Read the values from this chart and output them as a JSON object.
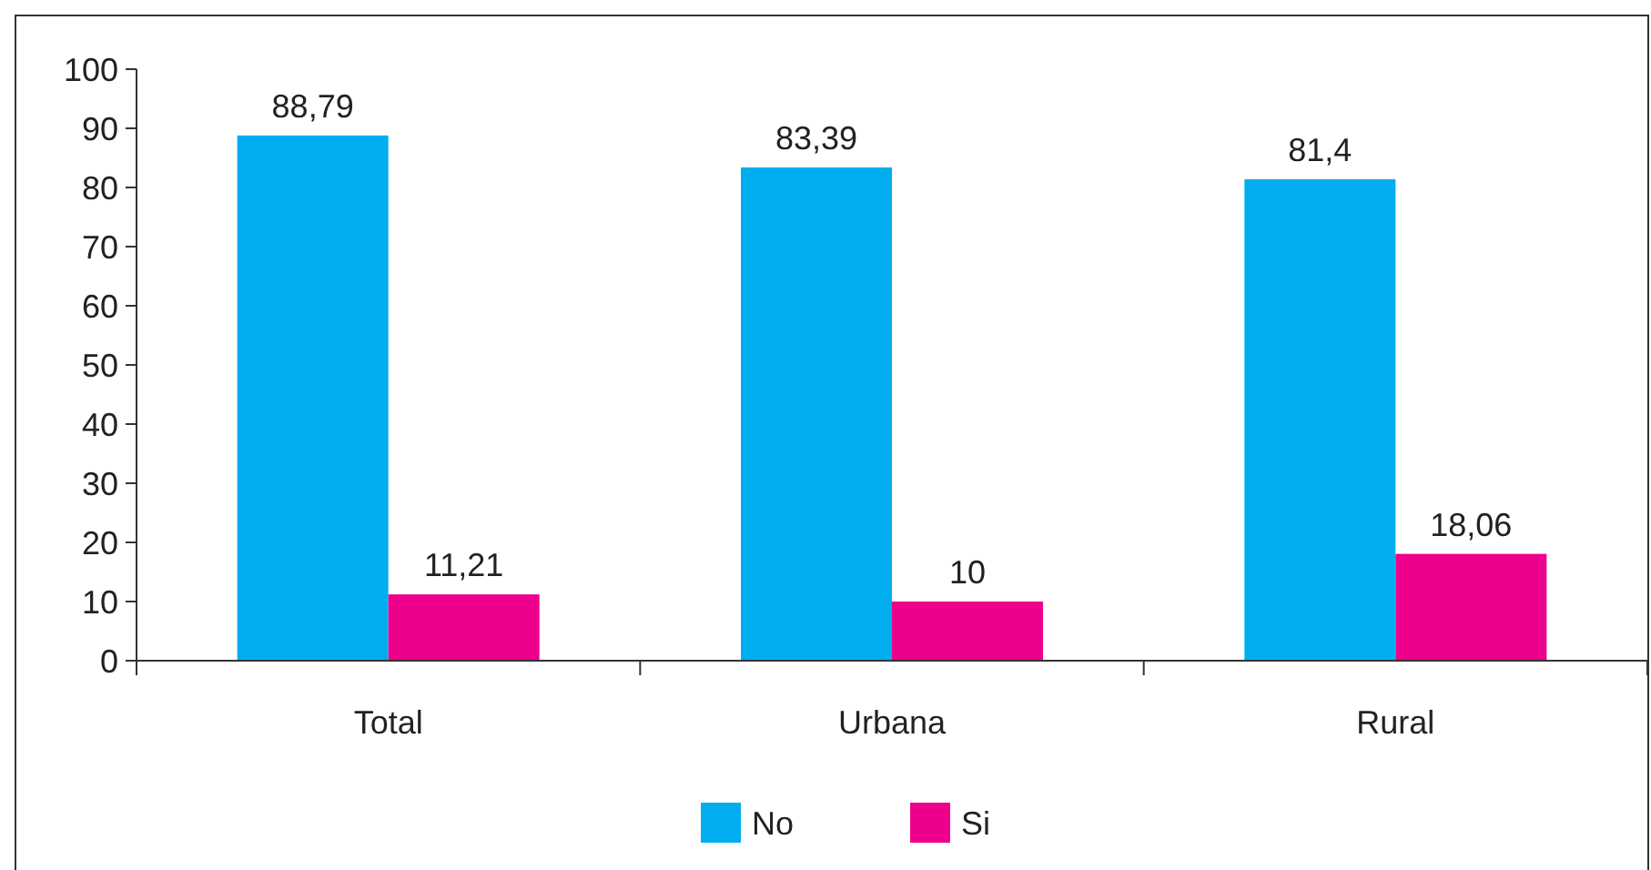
{
  "chart_data": {
    "type": "bar",
    "categories": [
      "Total",
      "Urbana",
      "Rural"
    ],
    "series": [
      {
        "name": "No",
        "color": "#00aeef",
        "values": [
          88.79,
          83.39,
          81.4
        ],
        "value_labels": [
          "88,79",
          "83,39",
          "81,4"
        ]
      },
      {
        "name": "Si",
        "color": "#ec008c",
        "values": [
          11.21,
          10,
          18.06
        ],
        "value_labels": [
          "11,21",
          "10",
          "18,06"
        ]
      }
    ],
    "ylim": [
      0,
      100
    ],
    "yticks": [
      0,
      10,
      20,
      30,
      40,
      50,
      60,
      70,
      80,
      90,
      100
    ],
    "grid": false,
    "legend": "bottom"
  }
}
